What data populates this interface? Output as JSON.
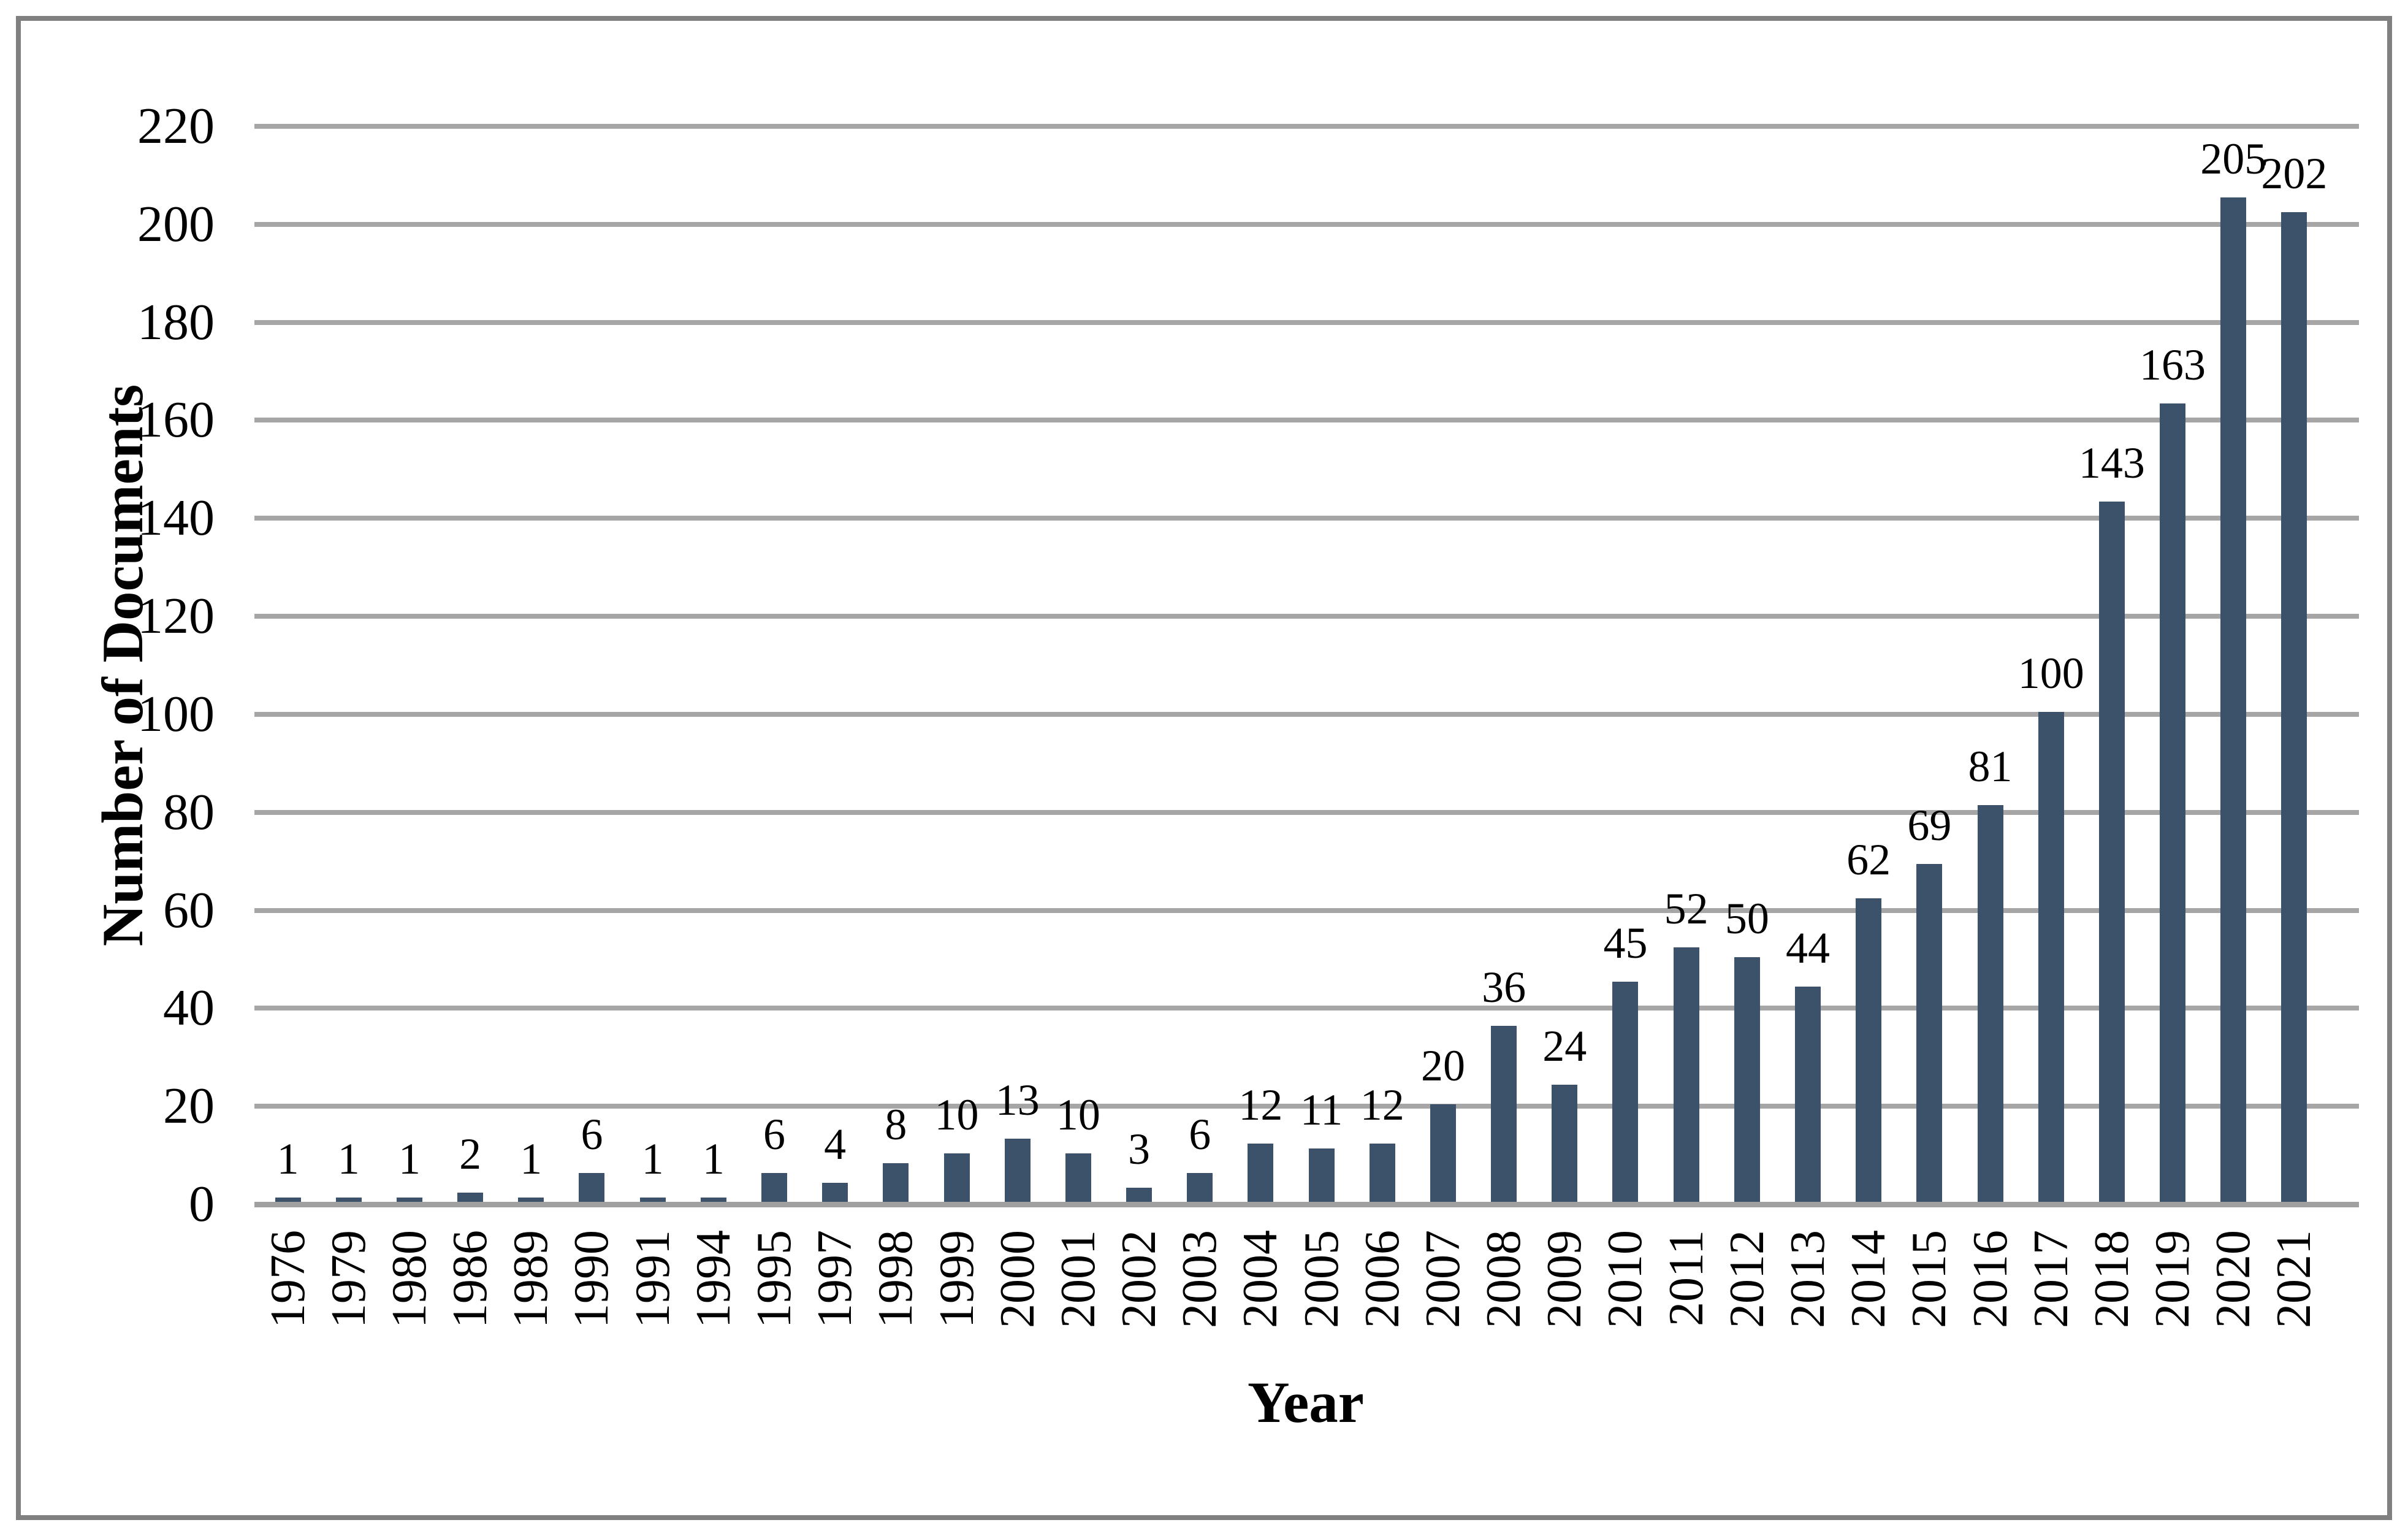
{
  "chart_data": {
    "type": "bar",
    "title": "",
    "xlabel": "Year",
    "ylabel": "Number of Documents",
    "categories": [
      1976,
      1979,
      1980,
      1986,
      1989,
      1990,
      1991,
      1994,
      1995,
      1997,
      1998,
      1999,
      2000,
      2001,
      2002,
      2003,
      2004,
      2005,
      2006,
      2007,
      2008,
      2009,
      2010,
      2011,
      2012,
      2013,
      2014,
      2015,
      2016,
      2017,
      2018,
      2019,
      2020,
      2021
    ],
    "values": [
      1,
      1,
      1,
      2,
      1,
      6,
      1,
      1,
      6,
      4,
      8,
      10,
      13,
      10,
      3,
      6,
      12,
      11,
      12,
      20,
      36,
      24,
      45,
      52,
      50,
      44,
      62,
      69,
      81,
      100,
      143,
      163,
      205,
      202
    ],
    "ylim": [
      0,
      220
    ],
    "ytick_step": 20,
    "grid": true,
    "legend": false,
    "data_labels": true,
    "bar_color": "#3C526B",
    "gridline_color": "#A6A6A6",
    "axis_line_color": "#A0A0A0",
    "frame_color": "#808080",
    "text_color": "#000000"
  }
}
